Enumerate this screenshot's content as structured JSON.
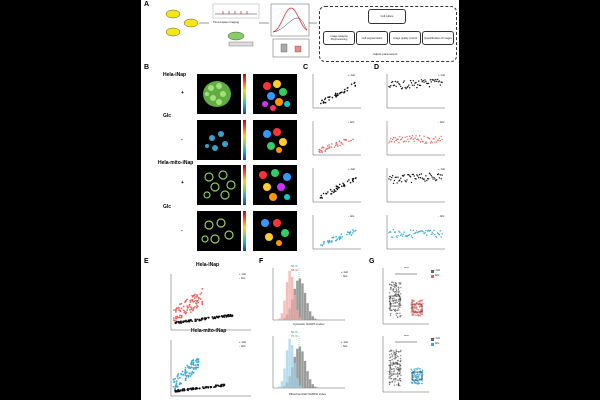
{
  "panels": {
    "A": "A",
    "B": "B",
    "C": "C",
    "D": "D",
    "E": "E",
    "F": "F",
    "G": "G"
  },
  "panelA": {
    "workflow_boxes": [
      "Image analysis Preprocessing",
      "Cell segmentation",
      "Image quality control",
      "Quantification of images"
    ],
    "adjust_label": "Adjust parameters",
    "step1": "Time-lapse imaging",
    "step2": "Cell culture"
  },
  "rowLabels": {
    "hela_inap": "Hela-iNap",
    "hela_mito_inap": "Hela-mito-iNap",
    "glc": "Glc",
    "plus": "+",
    "minus": "-"
  },
  "legend": {
    "plus_glc": "+ Glc",
    "minus_glc": "- Glc"
  },
  "axes": {
    "x_cell": "Cell",
    "y_f": "F",
    "x_fsum": "F sum",
    "x_cyto": "Cytosolic NADPH index",
    "x_mito": "Mitochondrial NADPH index",
    "y_freq": "Frequency"
  },
  "panelE": {
    "title_top": "Hela-iNap",
    "title_bottom": "Hela-mito-iNap"
  },
  "panelF": {
    "pct_top_a": "50 %",
    "pct_top_b": "68 %",
    "pct_bot_a": "50 %",
    "pct_bot_b": "76 %"
  },
  "panelG": {
    "sig": "****",
    "ylabel_top": "Concentration of NADPH (µM)",
    "ylabel_bottom": "Concentration of NADPH (µM)"
  },
  "colors": {
    "black_series": "#111111",
    "red_series": "#e8665f",
    "blue_series": "#38a8d8",
    "grey_hist": "#8a8a8a",
    "pink_hist": "#f2a7a3",
    "blue_hist": "#9fd0e8"
  },
  "chart_data": [
    {
      "type": "scatter",
      "name": "C-top",
      "series": [
        {
          "name": "+ Glc",
          "x": [
            1,
            2,
            3,
            4,
            5,
            6,
            7,
            8
          ],
          "y": [
            0.4,
            0.8,
            1.2,
            1.6,
            2.0,
            2.4,
            2.8,
            3.2
          ]
        }
      ]
    },
    {
      "type": "scatter",
      "name": "D-top",
      "series": [
        {
          "name": "+ Glc",
          "x": [
            1,
            50,
            100,
            150,
            200
          ],
          "y": [
            2.2,
            2.4,
            2.6,
            2.7,
            2.8
          ]
        }
      ]
    },
    {
      "type": "bar",
      "name": "F-top",
      "categories": [
        "0.5",
        "1.0",
        "1.5",
        "2.0",
        "2.5"
      ],
      "series": [
        {
          "name": "+ Glc",
          "values": [
            5,
            30,
            60,
            20,
            5
          ]
        },
        {
          "name": "- Glc",
          "values": [
            20,
            70,
            25,
            5,
            1
          ]
        }
      ]
    },
    {
      "type": "bar",
      "name": "F-bottom",
      "categories": [
        "0.5",
        "1.0",
        "1.5",
        "2.0",
        "2.5"
      ],
      "series": [
        {
          "name": "+ Glc",
          "values": [
            5,
            25,
            55,
            30,
            8
          ]
        },
        {
          "name": "- Glc",
          "values": [
            25,
            75,
            30,
            6,
            1
          ]
        }
      ]
    },
    {
      "type": "box",
      "name": "G-top",
      "categories": [
        "+ Glc",
        "- Glc"
      ],
      "median": [
        2.1,
        1.2
      ]
    },
    {
      "type": "box",
      "name": "G-bottom",
      "categories": [
        "+ Glc",
        "- Glc"
      ],
      "median": [
        2.0,
        1.3
      ]
    }
  ]
}
